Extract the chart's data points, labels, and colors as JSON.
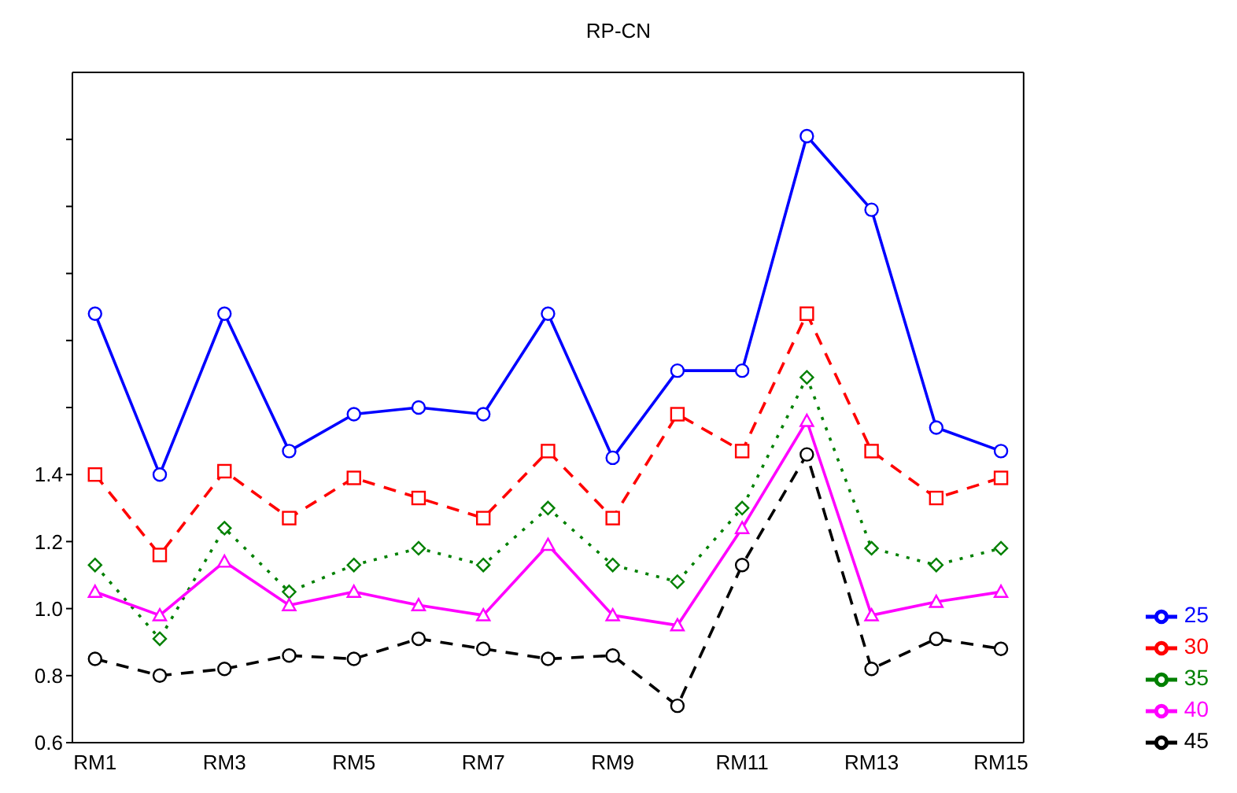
{
  "chart_data": {
    "type": "line",
    "title": "RP-CN",
    "categories": [
      "RM1",
      null,
      "RM3",
      null,
      "RM5",
      null,
      "RM7",
      null,
      "RM9",
      null,
      "RM11",
      null,
      "RM13",
      null,
      "RM15"
    ],
    "ylim": [
      0.6,
      2.6
    ],
    "yticks": [
      0.6,
      0.8,
      "1.0",
      1.2,
      1.4,
      {
        "value": 1.6,
        "label": null
      },
      {
        "value": 1.8,
        "label": null
      },
      {
        "value": 2.0,
        "label": null
      },
      {
        "value": 2.2,
        "label": null
      },
      {
        "value": 2.4,
        "label": null
      }
    ],
    "grid": false,
    "legend": "bottom right",
    "series": [
      {
        "name": "25",
        "color": "#0000ff",
        "marker": "circle",
        "line_style": "solid",
        "values": [
          1.88,
          1.4,
          1.88,
          1.47,
          1.58,
          1.6,
          1.58,
          1.88,
          1.45,
          1.71,
          1.71,
          2.41,
          2.19,
          1.54,
          1.47
        ]
      },
      {
        "name": "30",
        "color": "#ff0000",
        "marker": "square",
        "line_style": "dashed",
        "values": [
          1.4,
          1.16,
          1.41,
          1.27,
          1.39,
          1.33,
          1.27,
          1.47,
          1.27,
          1.58,
          1.47,
          1.88,
          1.47,
          1.33,
          1.39
        ]
      },
      {
        "name": "35",
        "color": "#008000",
        "marker": "diamond",
        "line_style": "dotted",
        "values": [
          1.13,
          0.91,
          1.24,
          1.05,
          1.13,
          1.18,
          1.13,
          1.3,
          1.13,
          1.08,
          1.3,
          1.69,
          1.18,
          1.13,
          1.18
        ]
      },
      {
        "name": "40",
        "color": "#ff00ff",
        "marker": "triangle",
        "line_style": "solid",
        "values": [
          1.05,
          0.98,
          1.14,
          1.01,
          1.05,
          1.01,
          0.98,
          1.19,
          0.98,
          0.95,
          1.24,
          1.56,
          0.98,
          1.02,
          1.05
        ]
      },
      {
        "name": "45",
        "color": "#000000",
        "marker": "circle",
        "line_style": "dashed",
        "values": [
          0.85,
          0.8,
          0.82,
          0.86,
          0.85,
          0.91,
          0.88,
          0.85,
          0.86,
          0.71,
          1.13,
          1.46,
          0.82,
          0.91,
          0.88
        ]
      }
    ]
  }
}
